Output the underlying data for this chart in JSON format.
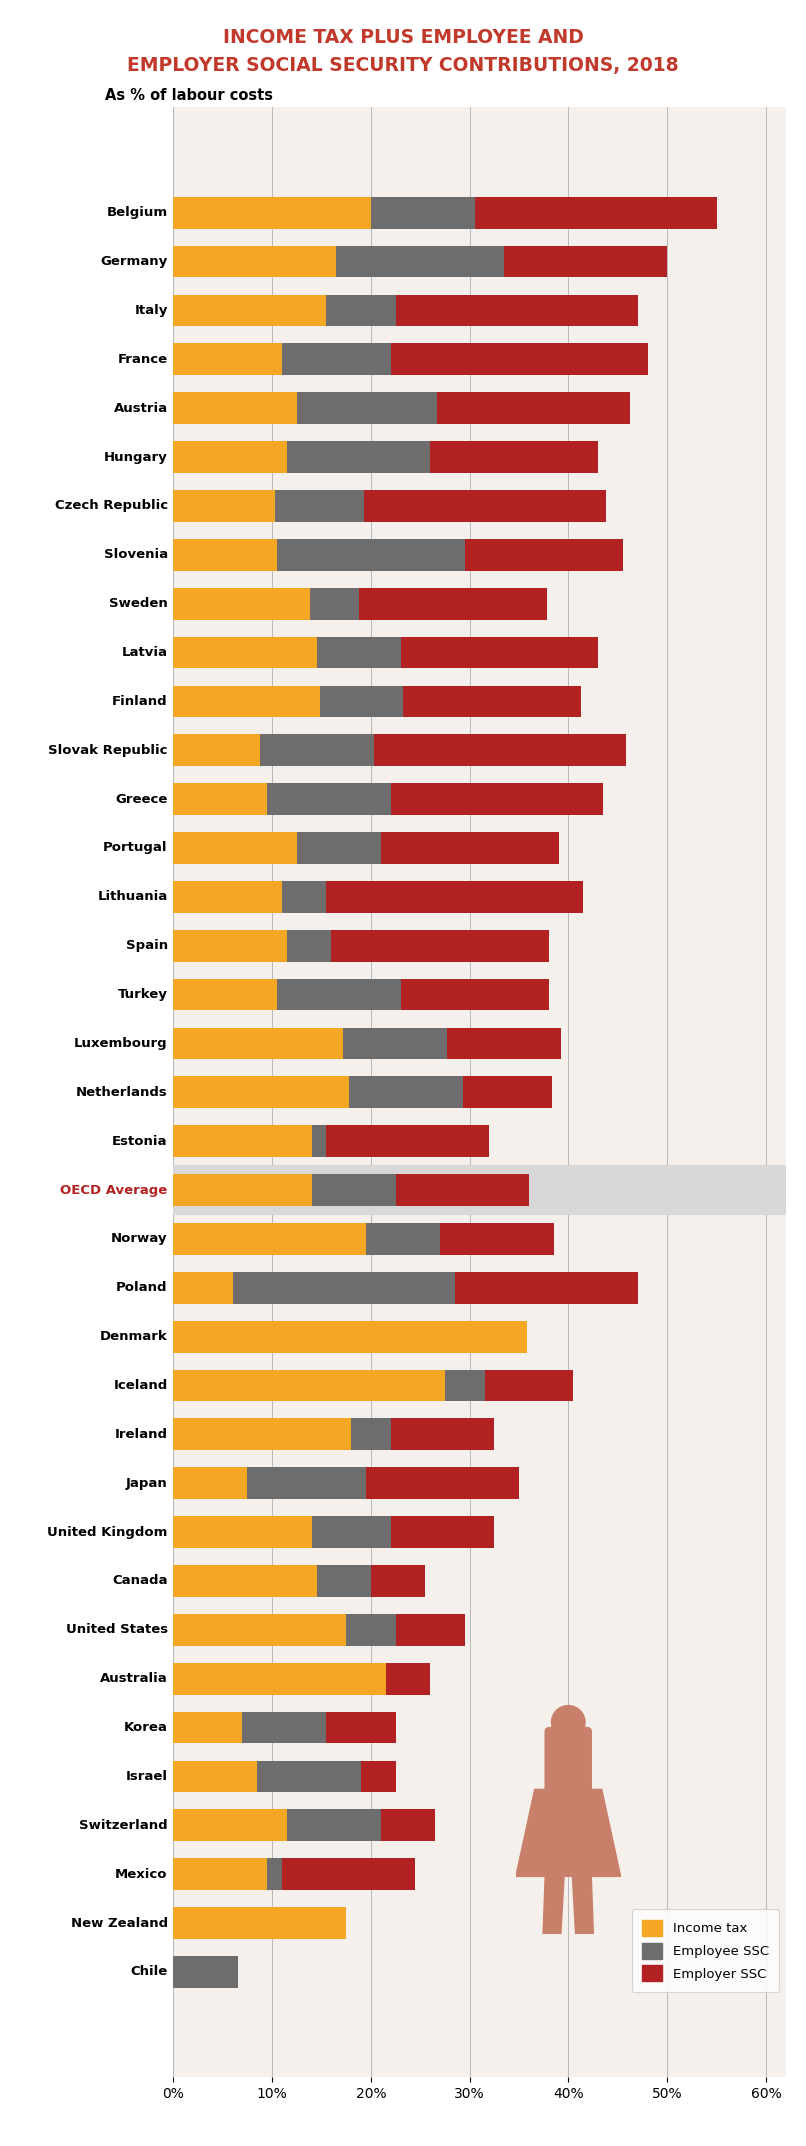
{
  "title_line1": "INCOME TAX PLUS EMPLOYEE AND",
  "title_line2": "EMPLOYER SOCIAL SECURITY CONTRIBUTIONS, 2018",
  "subtitle": "As % of labour costs",
  "title_color": "#c0392b",
  "subtitle_color": "#000000",
  "background_color": "#f5f0eb",
  "countries": [
    "Belgium",
    "Germany",
    "Italy",
    "France",
    "Austria",
    "Hungary",
    "Czech Republic",
    "Slovenia",
    "Sweden",
    "Latvia",
    "Finland",
    "Slovak Republic",
    "Greece",
    "Portugal",
    "Lithuania",
    "Spain",
    "Turkey",
    "Luxembourg",
    "Netherlands",
    "Estonia",
    "OECD Average",
    "Norway",
    "Poland",
    "Denmark",
    "Iceland",
    "Ireland",
    "Japan",
    "United Kingdom",
    "Canada",
    "United States",
    "Australia",
    "Korea",
    "Israel",
    "Switzerland",
    "Mexico",
    "New Zealand",
    "Chile"
  ],
  "income_tax": [
    20.0,
    16.5,
    15.5,
    11.0,
    12.5,
    11.5,
    10.3,
    10.5,
    13.8,
    14.5,
    14.8,
    8.8,
    9.5,
    12.5,
    11.0,
    11.5,
    10.5,
    17.2,
    17.8,
    14.0,
    14.0,
    19.5,
    6.0,
    35.8,
    27.5,
    18.0,
    7.5,
    14.0,
    14.5,
    17.5,
    21.5,
    7.0,
    8.5,
    11.5,
    9.5,
    17.5,
    0.0
  ],
  "employee_ssc": [
    10.5,
    17.0,
    7.0,
    11.0,
    14.2,
    14.5,
    9.0,
    19.0,
    5.0,
    8.5,
    8.5,
    11.5,
    12.5,
    8.5,
    4.5,
    4.5,
    12.5,
    10.5,
    11.5,
    1.5,
    8.5,
    7.5,
    22.5,
    0.0,
    4.0,
    4.0,
    12.0,
    8.0,
    5.5,
    5.0,
    0.0,
    8.5,
    10.5,
    9.5,
    1.5,
    0.0,
    6.5
  ],
  "employer_ssc": [
    24.5,
    16.5,
    24.5,
    26.0,
    19.5,
    17.0,
    24.5,
    16.0,
    19.0,
    20.0,
    18.0,
    25.5,
    21.5,
    18.0,
    26.0,
    22.0,
    15.0,
    11.5,
    9.0,
    16.5,
    13.5,
    11.5,
    18.5,
    0.0,
    9.0,
    10.5,
    15.5,
    10.5,
    5.5,
    7.0,
    4.5,
    7.0,
    3.5,
    5.5,
    13.5,
    0.0,
    0.0
  ],
  "color_income": "#f5a623",
  "color_employee": "#6d6d6d",
  "color_employer": "#b22222",
  "oecd_avg_index": 20,
  "oecd_bg_color": "#d8d8d8",
  "figure_person_color": "#c9806a"
}
